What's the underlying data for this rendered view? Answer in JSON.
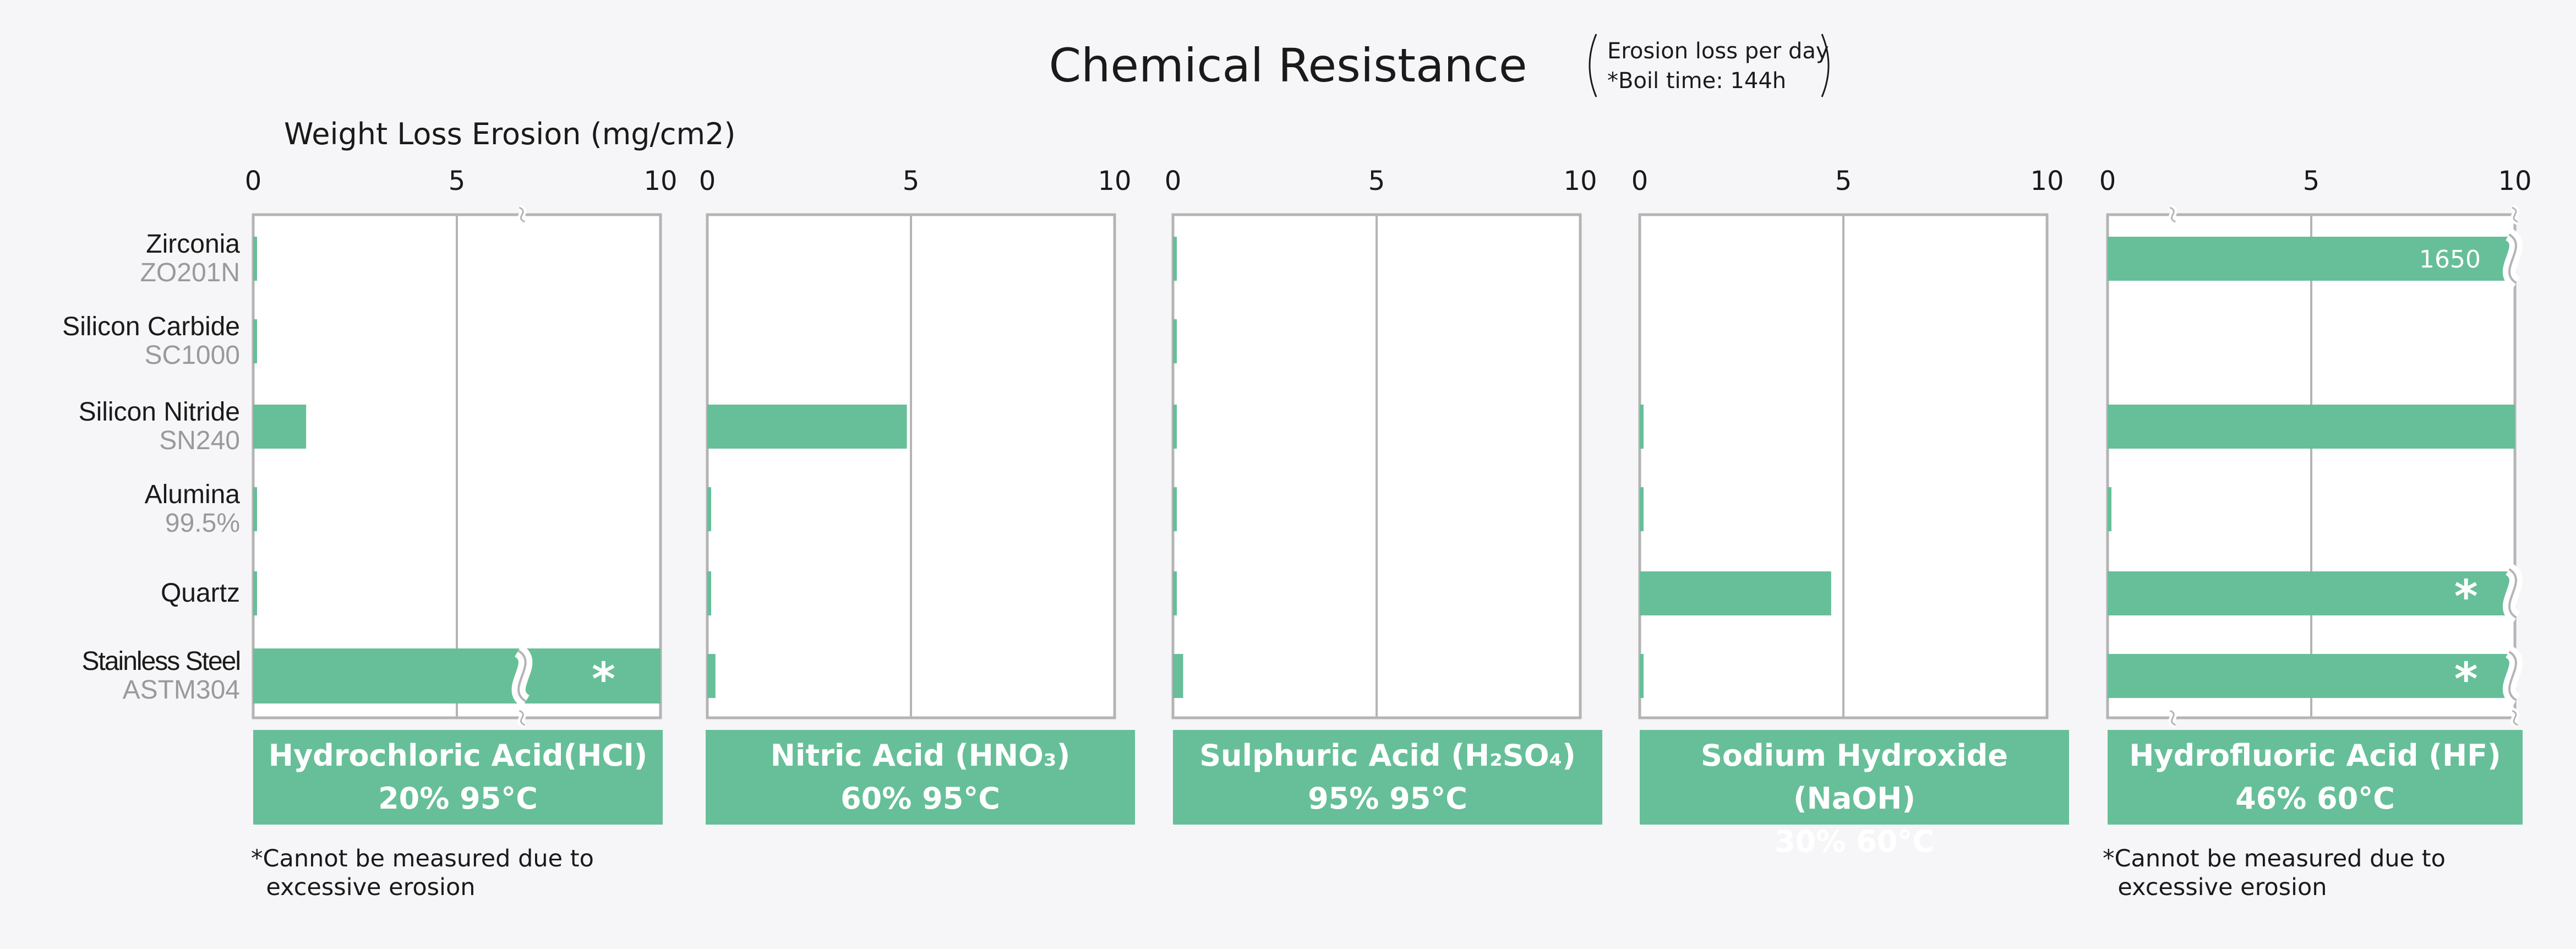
{
  "chart_data": {
    "type": "bar",
    "orientation": "horizontal",
    "title": "Chemical Resistance",
    "notes": [
      "Erosion loss per day",
      "*Boil time: 144h"
    ],
    "xlabel": "Weight Loss Erosion (mg/cm2)",
    "xlim": [
      0,
      10
    ],
    "x_ticks": [
      "0",
      "5",
      "10"
    ],
    "categories": [
      {
        "name": "Zirconia",
        "grade": "ZO201N"
      },
      {
        "name": "Silicon Carbide",
        "grade": "SC1000"
      },
      {
        "name": "Silicon Nitride",
        "grade": "SN240"
      },
      {
        "name": "Alumina",
        "grade": "99.5%"
      },
      {
        "name": "Quartz",
        "grade": ""
      },
      {
        "name": "Stainless Steel",
        "grade": "ASTM304"
      }
    ],
    "panels": [
      {
        "title_main": "Hydrochloric Acid(HCl)",
        "title_condition": "20% 95°C",
        "values": [
          0.05,
          0.05,
          1.3,
          0.05,
          0.05,
          null
        ],
        "bar_labels": [
          "",
          "",
          "",
          "",
          "",
          "*"
        ],
        "footnote": "*Cannot be measured due to\n  excessive erosion"
      },
      {
        "title_main": "Nitric Acid (HNO₃)",
        "title_condition": "60% 95°C",
        "values": [
          0,
          0,
          4.9,
          0.05,
          0.05,
          0.2
        ],
        "bar_labels": [
          "",
          "",
          "",
          "",
          "",
          ""
        ],
        "footnote": ""
      },
      {
        "title_main": "Sulphuric Acid (H₂SO₄)",
        "title_condition": "95% 95°C",
        "values": [
          0.05,
          0.05,
          0.05,
          0.05,
          0.05,
          0.25
        ],
        "bar_labels": [
          "",
          "",
          "",
          "",
          "",
          ""
        ],
        "footnote": ""
      },
      {
        "title_main": "Sodium Hydroxide (NaOH)",
        "title_condition": "30% 60°C",
        "values": [
          0,
          0,
          0.05,
          0.05,
          4.7,
          0.05
        ],
        "bar_labels": [
          "",
          "",
          "",
          "",
          "",
          ""
        ],
        "footnote": ""
      },
      {
        "title_main": "Hydrofluoric Acid (HF)",
        "title_condition": "46% 60°C",
        "values": [
          1650,
          0,
          10,
          0.05,
          null,
          null
        ],
        "bar_labels": [
          "1650",
          "",
          "",
          "",
          "*",
          "*"
        ],
        "footnote": "*Cannot be measured due to\n  excessive erosion"
      }
    ],
    "bar_color": "#66bf98",
    "grid": true,
    "legend": "none"
  }
}
